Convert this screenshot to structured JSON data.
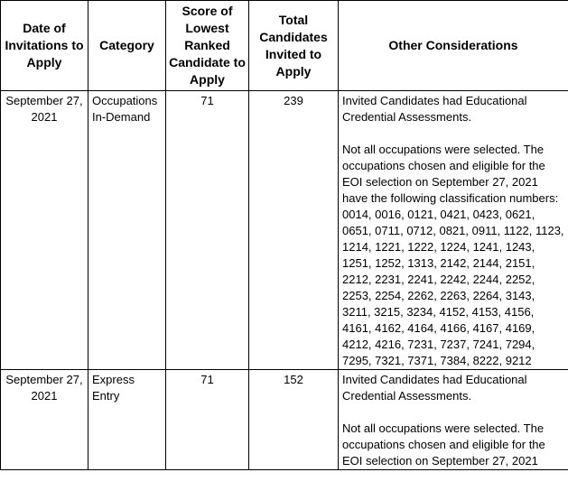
{
  "table": {
    "headers": [
      "Date of Invitations to Apply",
      "Category",
      "Score of Lowest Ranked Candidate to Apply",
      "Total Candidates Invited to Apply",
      "Other Considerations"
    ],
    "rows": [
      {
        "date": "September 27, 2021",
        "category": "Occupations In-Demand",
        "score": "71",
        "total": "239",
        "considerations": [
          "Invited Candidates had Educational Credential Assessments.",
          "Not all occupations were selected. The occupations chosen and eligible for the EOI selection on September 27, 2021 have the following classification numbers: 0014, 0016, 0121, 0421, 0423, 0621, 0651, 0711, 0712, 0821, 0911, 1122, 1123, 1214, 1221, 1222, 1224, 1241, 1243, 1251, 1252, 1313, 2142, 2144, 2151, 2212, 2231, 2241, 2242, 2244, 2252, 2253, 2254, 2262, 2263, 2264, 3143, 3211, 3215, 3234, 4152, 4153, 4156, 4161, 4162, 4164, 4166, 4167, 4169, 4212, 4216, 7231, 7237, 7241, 7294, 7295, 7321, 7371, 7384, 8222, 9212"
        ]
      },
      {
        "date": "September 27, 2021",
        "category": "Express Entry",
        "score": "71",
        "total": "152",
        "considerations": [
          "Invited Candidates had Educational Credential Assessments.",
          "Not all occupations were selected. The occupations chosen and eligible for the EOI selection on September 27, 2021"
        ]
      }
    ]
  }
}
